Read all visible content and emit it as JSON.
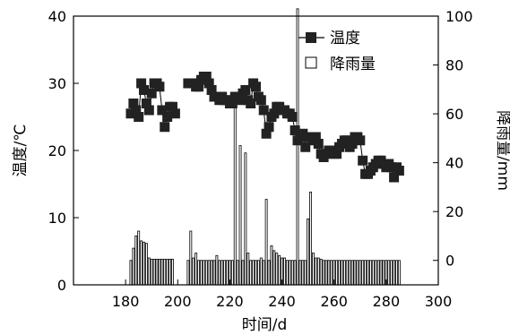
{
  "chart_data": {
    "type": "bar",
    "xlabel": "时间/d",
    "ylabel_left": "温度/℃",
    "ylabel_right": "降雨量/mm",
    "xlim": [
      160,
      300
    ],
    "ylim_left": [
      0,
      40
    ],
    "ylim_right": [
      -10,
      100
    ],
    "xticks": [
      "180",
      "200",
      "220",
      "240",
      "260",
      "280",
      "300"
    ],
    "yticks_left": [
      "0",
      "10",
      "20",
      "30",
      "40"
    ],
    "yticks_right": [
      "0",
      "20",
      "40",
      "60",
      "80",
      "100"
    ],
    "legend": {
      "placement": "top-right",
      "entries": [
        "温度",
        "降雨量"
      ]
    },
    "grid": false,
    "series": [
      {
        "name": "温度",
        "type": "line",
        "marker": "square",
        "x": [
          182,
          183,
          184,
          185,
          186,
          187,
          188,
          189,
          190,
          191,
          192,
          193,
          194,
          195,
          196,
          197,
          198,
          199,
          204,
          205,
          206,
          207,
          208,
          209,
          210,
          211,
          212,
          213,
          214,
          215,
          216,
          217,
          218,
          219,
          220,
          221,
          222,
          223,
          224,
          225,
          226,
          227,
          228,
          229,
          230,
          231,
          232,
          233,
          234,
          235,
          236,
          237,
          238,
          239,
          240,
          241,
          242,
          243,
          244,
          245,
          246,
          247,
          248,
          249,
          250,
          251,
          252,
          253,
          254,
          255,
          256,
          257,
          258,
          259,
          260,
          261,
          262,
          263,
          264,
          265,
          266,
          267,
          268,
          269,
          270,
          271,
          272,
          273,
          274,
          275,
          276,
          277,
          278,
          279,
          280,
          281,
          282,
          283,
          284,
          285
        ],
        "y": [
          25.5,
          27,
          26,
          25,
          30,
          29,
          27,
          26,
          28.5,
          30,
          30,
          29.5,
          26,
          23.5,
          25,
          26.5,
          26.5,
          25.5,
          30,
          30,
          30,
          29.5,
          29.5,
          30.5,
          31,
          31,
          30,
          29,
          28,
          28,
          27.5,
          28,
          27.5,
          27.5,
          27,
          27,
          28,
          28,
          27.5,
          28.5,
          29,
          27.5,
          27,
          30,
          29.5,
          28,
          27.5,
          26,
          22.5,
          23.5,
          25,
          25.5,
          26.5,
          26.5,
          26,
          26,
          25.5,
          25.5,
          25,
          23,
          21.5,
          22,
          22.5,
          20.5,
          22,
          22,
          21.5,
          22,
          21,
          19.5,
          19,
          19.5,
          20,
          20,
          19.5,
          19.5,
          20.5,
          21,
          21.5,
          21.5,
          20.5,
          21,
          22,
          22,
          21.5,
          18.5,
          16.5,
          16.5,
          17,
          17.5,
          18,
          18.5,
          18.5,
          18,
          17.5,
          18,
          17.5,
          16,
          17.5,
          17
        ]
      },
      {
        "name": "降雨量",
        "type": "bar",
        "x": [
          182,
          183,
          184,
          185,
          186,
          187,
          188,
          189,
          190,
          191,
          192,
          193,
          194,
          195,
          196,
          197,
          198,
          204,
          205,
          206,
          207,
          208,
          209,
          210,
          211,
          212,
          213,
          214,
          215,
          216,
          217,
          218,
          219,
          220,
          221,
          222,
          223,
          224,
          225,
          226,
          227,
          228,
          229,
          230,
          231,
          232,
          233,
          234,
          235,
          236,
          237,
          238,
          239,
          240,
          241,
          242,
          243,
          244,
          245,
          246,
          247,
          248,
          249,
          250,
          251,
          252,
          253,
          254,
          255,
          256,
          257,
          258,
          259,
          260,
          261,
          262,
          263,
          264,
          265,
          266,
          267,
          268,
          269,
          270,
          271,
          272,
          273,
          274,
          275,
          276,
          277,
          278,
          279,
          280,
          281,
          282,
          283,
          284,
          285
        ],
        "values": [
          0,
          5,
          10,
          12,
          8,
          7.5,
          7,
          1,
          0.5,
          0.5,
          0.5,
          0.5,
          0.5,
          0.5,
          0.5,
          0.5,
          0.5,
          0,
          12,
          1,
          3,
          0,
          0,
          0,
          0,
          0,
          0,
          0,
          2,
          0,
          0,
          0,
          0,
          0,
          0,
          65,
          0,
          47,
          0,
          44,
          3,
          0,
          0,
          0,
          0,
          1,
          0,
          25,
          0,
          6,
          4,
          3,
          2,
          1,
          1,
          0,
          0,
          0,
          0,
          103,
          0,
          0,
          0,
          17,
          28,
          3,
          1,
          1,
          0.5,
          0,
          0,
          0,
          0,
          0,
          0,
          0,
          0,
          0,
          0,
          0,
          0,
          0,
          0,
          0,
          0,
          0,
          0,
          0,
          0,
          0,
          0,
          0,
          0,
          0,
          0,
          0,
          0,
          0,
          0
        ]
      }
    ]
  }
}
